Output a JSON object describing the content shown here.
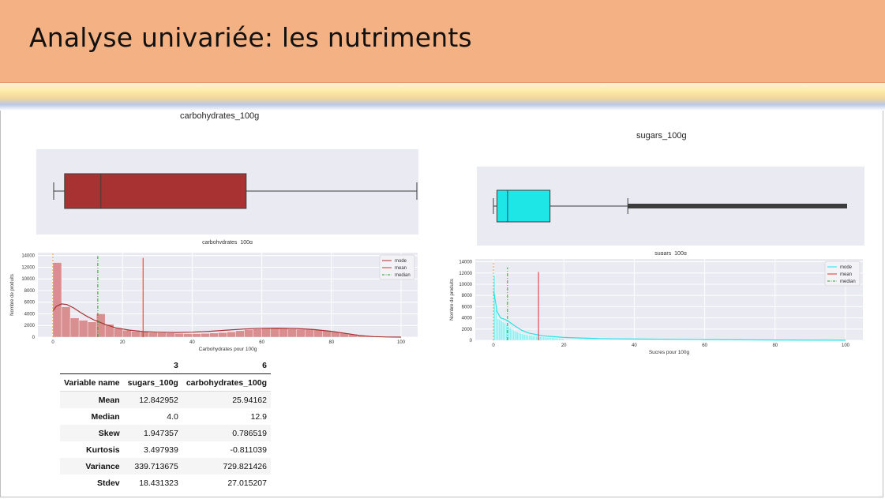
{
  "slide": {
    "title": "Analyse univariée: les nutriments"
  },
  "colors": {
    "header": "#f4b183",
    "carb": "#a83232",
    "carb_hist": "#d98f8f",
    "sugar": "#1ee6e6",
    "sugar_hist": "#8ef0f0",
    "mode": "#e8a23c",
    "mean": "#e03030",
    "median": "#2ca02c",
    "panel_bg": "#eaeaf2"
  },
  "chart_data": [
    {
      "type": "box",
      "title": "carbohydrates_100g",
      "xlabel": "carbohydrates_100g",
      "box": {
        "min": 0,
        "q1": 3,
        "median": 13,
        "q3": 53,
        "max": 100
      },
      "xlim": [
        0,
        100
      ]
    },
    {
      "type": "bar",
      "xlabel": "Carbohydrates pour 100g",
      "ylabel": "Nombre de produits",
      "x_ticks": [
        "0",
        "20",
        "40",
        "60",
        "80",
        "100"
      ],
      "y_ticks": [
        "0",
        "2000",
        "4000",
        "6000",
        "8000",
        "10000",
        "12000",
        "14000"
      ],
      "xlim": [
        0,
        100
      ],
      "ylim": [
        0,
        14500
      ],
      "bin_width": 2.5,
      "values": [
        12800,
        5200,
        3300,
        2900,
        2600,
        4000,
        2200,
        1500,
        1200,
        1000,
        900,
        800,
        750,
        700,
        650,
        600,
        600,
        650,
        700,
        800,
        900,
        1100,
        1300,
        1400,
        1450,
        1500,
        1450,
        1400,
        1350,
        1300,
        1250,
        1100,
        900,
        700,
        500,
        300,
        200,
        100,
        50,
        30
      ],
      "kde": [
        [
          0,
          4500
        ],
        [
          1,
          5300
        ],
        [
          2.5,
          5700
        ],
        [
          4,
          5600
        ],
        [
          6,
          5000
        ],
        [
          8,
          4200
        ],
        [
          10,
          3500
        ],
        [
          12,
          2900
        ],
        [
          15,
          2200
        ],
        [
          18,
          1600
        ],
        [
          22,
          1200
        ],
        [
          26,
          950
        ],
        [
          30,
          850
        ],
        [
          35,
          800
        ],
        [
          40,
          850
        ],
        [
          45,
          1000
        ],
        [
          50,
          1200
        ],
        [
          55,
          1400
        ],
        [
          60,
          1520
        ],
        [
          65,
          1550
        ],
        [
          70,
          1480
        ],
        [
          75,
          1300
        ],
        [
          80,
          1000
        ],
        [
          84,
          650
        ],
        [
          88,
          300
        ],
        [
          92,
          100
        ],
        [
          96,
          30
        ],
        [
          100,
          0
        ]
      ],
      "lines": {
        "mode": 0,
        "mean": 25.9,
        "median": 12.9
      },
      "line_heights": {
        "mode": 14500,
        "mean": 13600,
        "median": 13900
      },
      "legend": [
        "mode",
        "mean",
        "median"
      ],
      "legend_position": "top-right"
    },
    {
      "type": "box",
      "title": "sugars_100g",
      "xlabel": "sugars_100g",
      "box": {
        "min": 0,
        "q1": 1,
        "median": 4,
        "q3": 16,
        "whisker_hi": 38,
        "max": 100
      },
      "xlim": [
        0,
        100
      ]
    },
    {
      "type": "bar",
      "xlabel": "Sucres pour 100g",
      "ylabel": "Nombre de produits",
      "x_ticks": [
        "0",
        "20",
        "40",
        "60",
        "80",
        "100"
      ],
      "y_ticks": [
        "0",
        "2000",
        "4000",
        "6000",
        "8000",
        "10000",
        "12000",
        "14000"
      ],
      "xlim": [
        0,
        100
      ],
      "ylim": [
        0,
        14500
      ],
      "bin_width": 0.5,
      "values": [
        11600,
        5500,
        3900,
        3700,
        3500,
        3300,
        3100,
        2800,
        2500,
        2200,
        2000,
        1800,
        1650,
        1500,
        1350,
        1250,
        1150,
        1050,
        1000,
        950,
        900,
        850,
        800,
        760,
        720,
        680,
        650,
        620,
        590,
        560,
        530,
        500,
        480,
        460,
        440,
        420,
        400,
        380,
        360,
        340
      ],
      "kde": [
        [
          0,
          8800
        ],
        [
          0.5,
          7200
        ],
        [
          1,
          5200
        ],
        [
          2,
          4000
        ],
        [
          3,
          3800
        ],
        [
          4,
          3500
        ],
        [
          6,
          2600
        ],
        [
          8,
          1800
        ],
        [
          10,
          1300
        ],
        [
          14,
          800
        ],
        [
          20,
          500
        ],
        [
          30,
          300
        ],
        [
          40,
          220
        ],
        [
          60,
          120
        ],
        [
          80,
          60
        ],
        [
          100,
          20
        ]
      ],
      "lines": {
        "mode": 0,
        "mean": 12.8,
        "median": 4.0
      },
      "line_heights": {
        "mode": 14000,
        "mean": 12200,
        "median": 13000
      },
      "legend": [
        "mode",
        "mean",
        "median"
      ],
      "legend_position": "top-right"
    },
    {
      "type": "table",
      "columns": [
        "3",
        "6"
      ],
      "index_name": "Variable name",
      "header_row": [
        "sugars_100g",
        "carbohydrates_100g"
      ],
      "rows": [
        {
          "label": "Mean",
          "values": [
            "12.842952",
            "25.94162"
          ]
        },
        {
          "label": "Median",
          "values": [
            "4.0",
            "12.9"
          ]
        },
        {
          "label": "Skew",
          "values": [
            "1.947357",
            "0.786519"
          ]
        },
        {
          "label": "Kurtosis",
          "values": [
            "3.497939",
            "-0.811039"
          ]
        },
        {
          "label": "Variance",
          "values": [
            "339.713675",
            "729.821426"
          ]
        },
        {
          "label": "Stdev",
          "values": [
            "18.431323",
            "27.015207"
          ]
        }
      ]
    }
  ]
}
